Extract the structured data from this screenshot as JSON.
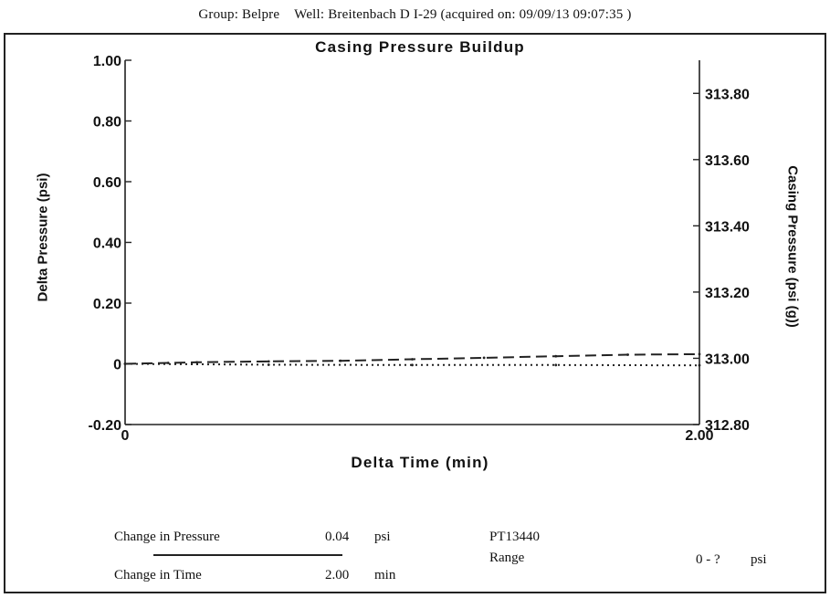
{
  "header": {
    "group": "Group: Belpre",
    "well": "Well: Breitenbach D I-29 (acquired on: 09/09/13 09:07:35 )"
  },
  "chart_data": {
    "type": "line",
    "title": "Casing Pressure Buildup",
    "xlabel": "Delta Time (min)",
    "ylabel": "Delta Pressure (psi)",
    "y2label": "Casing Pressure (psi (g))",
    "xlim": [
      0,
      2.0
    ],
    "ylim": [
      -0.2,
      1.0
    ],
    "y2lim": [
      312.8,
      313.9
    ],
    "x_ticks": [
      "0",
      "2.00"
    ],
    "y_ticks": [
      {
        "v": 1.0,
        "label": "1.00"
      },
      {
        "v": 0.8,
        "label": "0.80"
      },
      {
        "v": 0.6,
        "label": "0.60"
      },
      {
        "v": 0.4,
        "label": "0.40"
      },
      {
        "v": 0.2,
        "label": "0.20"
      },
      {
        "v": 0.0,
        "label": "0"
      },
      {
        "v": -0.2,
        "label": "-0.20"
      }
    ],
    "y2_ticks": [
      {
        "v": 313.8,
        "label": "313.80"
      },
      {
        "v": 313.6,
        "label": "313.60"
      },
      {
        "v": 313.4,
        "label": "313.40"
      },
      {
        "v": 313.2,
        "label": "313.20"
      },
      {
        "v": 313.0,
        "label": "313.00"
      },
      {
        "v": 312.8,
        "label": "312.80"
      }
    ],
    "grid": false,
    "series": [
      {
        "style": "dashed",
        "axis": "left",
        "x": [
          0,
          0.15,
          0.25,
          0.5,
          0.75,
          1.0,
          1.25,
          1.5,
          1.75,
          2.0
        ],
        "y": [
          0,
          0.003,
          0.005,
          0.008,
          0.01,
          0.015,
          0.02,
          0.025,
          0.03,
          0.032
        ]
      },
      {
        "style": "dotted",
        "axis": "left",
        "x": [
          0,
          0.5,
          1.0,
          1.5,
          2.0
        ],
        "y": [
          0,
          -0.003,
          -0.004,
          -0.004,
          -0.005
        ]
      }
    ]
  },
  "footer": {
    "change_pressure_label": "Change in Pressure",
    "change_pressure_value": "0.04",
    "change_pressure_unit": "psi",
    "change_time_label": "Change in Time",
    "change_time_value": "2.00",
    "change_time_unit": "min",
    "sensor_id": "PT13440",
    "range_label": "Range",
    "range_value": "0 - ?",
    "range_unit": "psi"
  }
}
